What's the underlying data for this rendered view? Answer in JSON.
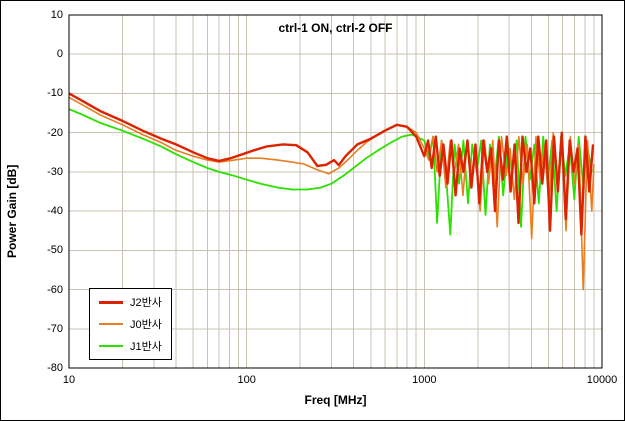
{
  "chart_data": {
    "type": "line",
    "title": "ctrl-1 ON, ctrl-2 OFF",
    "xlabel": "Freq [MHz]",
    "ylabel": "Power Gain [dB]",
    "x_scale": "log",
    "xlim": [
      10,
      10000
    ],
    "ylim": [
      -80,
      10
    ],
    "x_ticks": [
      10,
      100,
      1000,
      10000
    ],
    "y_ticks": [
      10,
      0,
      -10,
      -20,
      -30,
      -40,
      -50,
      -60,
      -70,
      -80
    ],
    "grid": {
      "color": "#c9c3b2",
      "show_minor_x": true,
      "show_major_y": true
    },
    "legend_position": "lower-left",
    "series": [
      {
        "name": "J2반사",
        "color": "#dd2200",
        "width": 2.4,
        "points": [
          [
            10,
            -10
          ],
          [
            12,
            -12
          ],
          [
            15,
            -14.5
          ],
          [
            20,
            -17
          ],
          [
            26,
            -19.5
          ],
          [
            33,
            -21.5
          ],
          [
            40,
            -23
          ],
          [
            50,
            -25
          ],
          [
            60,
            -26.5
          ],
          [
            70,
            -27.2
          ],
          [
            80,
            -26.6
          ],
          [
            95,
            -25.5
          ],
          [
            110,
            -24.5
          ],
          [
            130,
            -23.5
          ],
          [
            160,
            -23
          ],
          [
            190,
            -23.2
          ],
          [
            220,
            -25
          ],
          [
            250,
            -28.5
          ],
          [
            280,
            -28.2
          ],
          [
            310,
            -27
          ],
          [
            330,
            -28.3
          ],
          [
            360,
            -26
          ],
          [
            420,
            -23
          ],
          [
            500,
            -21.5
          ],
          [
            600,
            -19.5
          ],
          [
            700,
            -18
          ],
          [
            800,
            -18.5
          ],
          [
            900,
            -21
          ],
          [
            1000,
            -26
          ],
          [
            1050,
            -22
          ],
          [
            1100,
            -29
          ],
          [
            1160,
            -21
          ],
          [
            1220,
            -31
          ],
          [
            1280,
            -23
          ],
          [
            1350,
            -33
          ],
          [
            1420,
            -22
          ],
          [
            1500,
            -36
          ],
          [
            1580,
            -24
          ],
          [
            1660,
            -30
          ],
          [
            1750,
            -22
          ],
          [
            1840,
            -34
          ],
          [
            1940,
            -23
          ],
          [
            2040,
            -38
          ],
          [
            2150,
            -22
          ],
          [
            2260,
            -30
          ],
          [
            2380,
            -24
          ],
          [
            2500,
            -40
          ],
          [
            2630,
            -22
          ],
          [
            2770,
            -32
          ],
          [
            2910,
            -21
          ],
          [
            3060,
            -35
          ],
          [
            3220,
            -23
          ],
          [
            3390,
            -43
          ],
          [
            3570,
            -21
          ],
          [
            3760,
            -30
          ],
          [
            3950,
            -24
          ],
          [
            4160,
            -38
          ],
          [
            4380,
            -21
          ],
          [
            4610,
            -33
          ],
          [
            4850,
            -22
          ],
          [
            5100,
            -45
          ],
          [
            5370,
            -21
          ],
          [
            5650,
            -35
          ],
          [
            5940,
            -20
          ],
          [
            6250,
            -42
          ],
          [
            6580,
            -22
          ],
          [
            6920,
            -30
          ],
          [
            7280,
            -24
          ],
          [
            7660,
            -46
          ],
          [
            8060,
            -21
          ],
          [
            8480,
            -35
          ],
          [
            8900,
            -23
          ]
        ]
      },
      {
        "name": "J0반사",
        "color": "#e87e22",
        "width": 1.6,
        "points": [
          [
            10,
            -11
          ],
          [
            12,
            -13
          ],
          [
            15,
            -15.5
          ],
          [
            20,
            -18
          ],
          [
            26,
            -20.5
          ],
          [
            33,
            -22.5
          ],
          [
            40,
            -24.5
          ],
          [
            50,
            -26
          ],
          [
            60,
            -27
          ],
          [
            70,
            -27.5
          ],
          [
            85,
            -27
          ],
          [
            100,
            -26.5
          ],
          [
            120,
            -26.5
          ],
          [
            150,
            -27
          ],
          [
            180,
            -27.5
          ],
          [
            210,
            -28
          ],
          [
            250,
            -29.5
          ],
          [
            290,
            -30.5
          ],
          [
            330,
            -29
          ],
          [
            370,
            -27
          ],
          [
            420,
            -24.5
          ],
          [
            470,
            -22.5
          ],
          [
            530,
            -21
          ],
          [
            600,
            -19.5
          ],
          [
            700,
            -18
          ],
          [
            800,
            -18.5
          ],
          [
            900,
            -20
          ],
          [
            1000,
            -24
          ],
          [
            1060,
            -27
          ],
          [
            1120,
            -21
          ],
          [
            1180,
            -30
          ],
          [
            1250,
            -22
          ],
          [
            1320,
            -34
          ],
          [
            1400,
            -22
          ],
          [
            1480,
            -30
          ],
          [
            1560,
            -23
          ],
          [
            1650,
            -36
          ],
          [
            1740,
            -22
          ],
          [
            1840,
            -31
          ],
          [
            1950,
            -24
          ],
          [
            2060,
            -40
          ],
          [
            2180,
            -22
          ],
          [
            2300,
            -33
          ],
          [
            2430,
            -22
          ],
          [
            2570,
            -44
          ],
          [
            2720,
            -21
          ],
          [
            2880,
            -31
          ],
          [
            3040,
            -24
          ],
          [
            3210,
            -37
          ],
          [
            3400,
            -21
          ],
          [
            3590,
            -33
          ],
          [
            3800,
            -23
          ],
          [
            4020,
            -47
          ],
          [
            4250,
            -21
          ],
          [
            4490,
            -32
          ],
          [
            4750,
            -23
          ],
          [
            5020,
            -38
          ],
          [
            5310,
            -20
          ],
          [
            5610,
            -33
          ],
          [
            5930,
            -22
          ],
          [
            6270,
            -45
          ],
          [
            6630,
            -21
          ],
          [
            7010,
            -33
          ],
          [
            7410,
            -23
          ],
          [
            7840,
            -60
          ],
          [
            8290,
            -22
          ],
          [
            8760,
            -40
          ],
          [
            9000,
            -28
          ]
        ]
      },
      {
        "name": "J1반사",
        "color": "#2ce000",
        "width": 1.8,
        "points": [
          [
            10,
            -14
          ],
          [
            12,
            -15.5
          ],
          [
            15,
            -17.5
          ],
          [
            20,
            -19.5
          ],
          [
            26,
            -21.5
          ],
          [
            33,
            -23.5
          ],
          [
            40,
            -25.5
          ],
          [
            50,
            -27.5
          ],
          [
            60,
            -29
          ],
          [
            70,
            -30
          ],
          [
            85,
            -31
          ],
          [
            100,
            -32
          ],
          [
            120,
            -33
          ],
          [
            150,
            -34
          ],
          [
            180,
            -34.5
          ],
          [
            220,
            -34.5
          ],
          [
            260,
            -34
          ],
          [
            300,
            -33
          ],
          [
            350,
            -31
          ],
          [
            400,
            -29
          ],
          [
            470,
            -26.5
          ],
          [
            550,
            -24.5
          ],
          [
            650,
            -22.5
          ],
          [
            750,
            -21
          ],
          [
            850,
            -20.5
          ],
          [
            950,
            -21.5
          ],
          [
            1000,
            -22
          ],
          [
            1060,
            -26
          ],
          [
            1120,
            -21
          ],
          [
            1180,
            -43
          ],
          [
            1250,
            -22
          ],
          [
            1320,
            -30
          ],
          [
            1400,
            -46
          ],
          [
            1480,
            -23
          ],
          [
            1570,
            -33
          ],
          [
            1660,
            -22
          ],
          [
            1760,
            -38
          ],
          [
            1860,
            -23
          ],
          [
            1970,
            -30
          ],
          [
            2090,
            -22
          ],
          [
            2210,
            -41
          ],
          [
            2340,
            -23
          ],
          [
            2480,
            -32
          ],
          [
            2630,
            -21
          ],
          [
            2780,
            -36
          ],
          [
            2950,
            -23
          ],
          [
            3120,
            -30
          ],
          [
            3310,
            -22
          ],
          [
            3500,
            -44
          ],
          [
            3710,
            -21
          ],
          [
            3930,
            -32
          ],
          [
            4160,
            -23
          ],
          [
            4410,
            -38
          ],
          [
            4670,
            -21
          ],
          [
            4940,
            -33
          ],
          [
            5240,
            -22
          ],
          [
            5550,
            -40
          ],
          [
            5880,
            -21
          ],
          [
            6220,
            -31
          ],
          [
            6590,
            -23
          ],
          [
            6980,
            -37
          ],
          [
            7390,
            -21
          ],
          [
            7830,
            -33
          ],
          [
            8290,
            -24
          ],
          [
            8780,
            -30
          ]
        ]
      }
    ]
  }
}
